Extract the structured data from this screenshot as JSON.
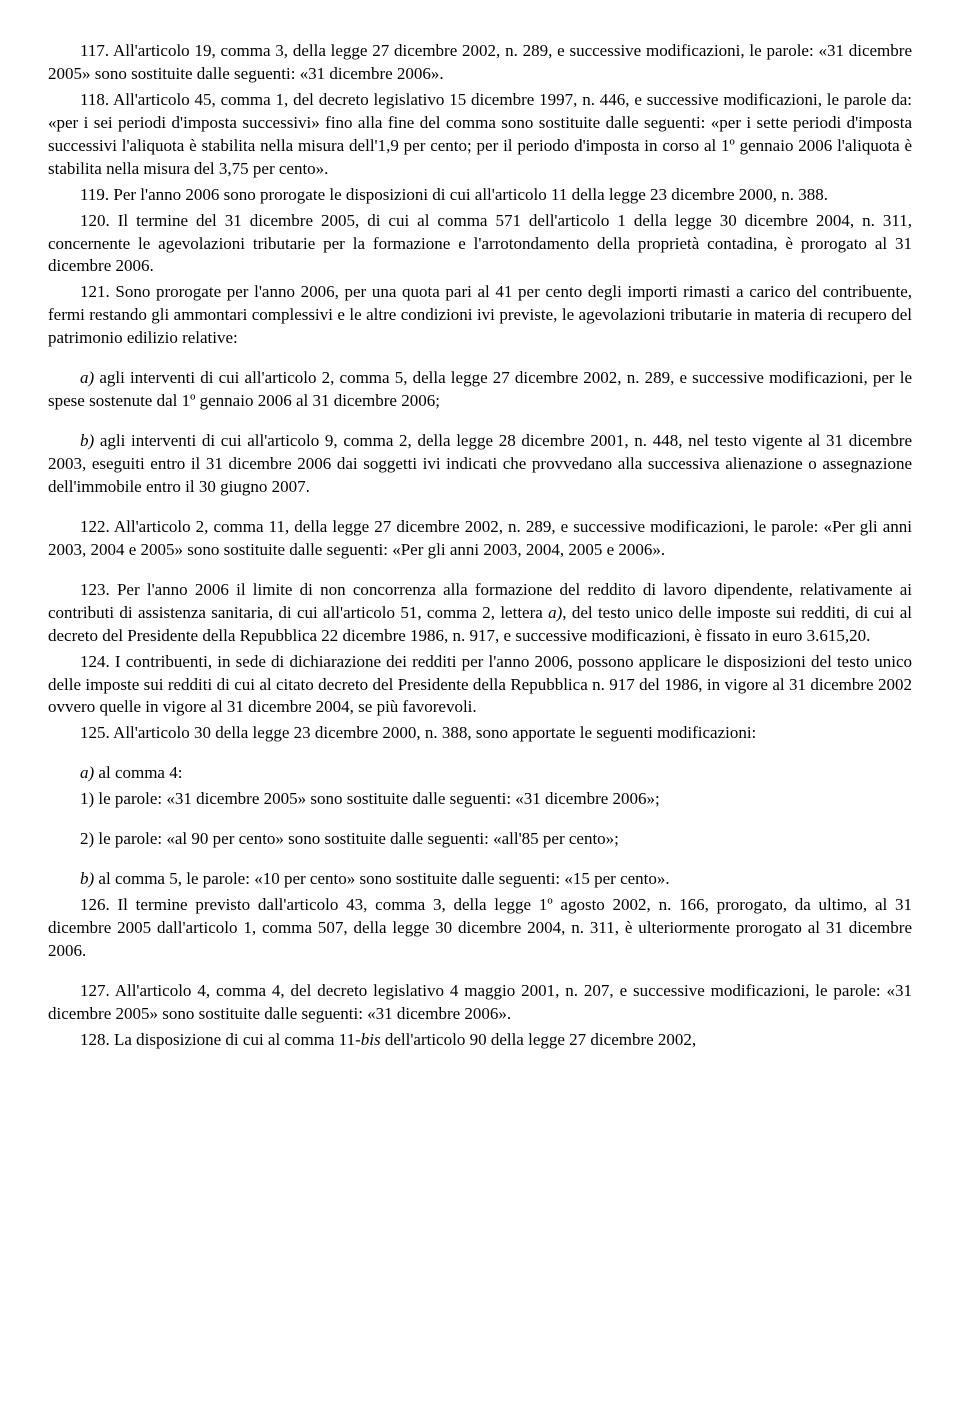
{
  "p117": "117. All'articolo 19, comma 3, della legge 27 dicembre 2002, n. 289, e successive modificazioni, le parole: «31 dicembre 2005» sono sostituite dalle seguenti: «31 dicembre 2006».",
  "p118": "118. All'articolo 45, comma 1, del decreto legislativo 15 dicembre 1997, n. 446, e successive modificazioni, le parole da: «per i sei periodi d'imposta successivi» fino alla fine del comma sono sostituite dalle seguenti: «per i sette periodi d'imposta successivi l'aliquota è stabilita nella misura dell'1,9 per cento; per il periodo d'imposta in corso al 1º gennaio 2006 l'aliquota è stabilita nella misura del 3,75 per cento».",
  "p119": "119. Per l'anno 2006 sono prorogate le disposizioni di cui all'articolo 11 della legge 23 dicembre 2000, n. 388.",
  "p120": "120. Il termine del 31 dicembre 2005, di cui al comma 571 dell'articolo 1 della legge 30 dicembre 2004, n. 311, concernente le agevolazioni tributarie per la formazione e l'arrotondamento della proprietà contadina, è prorogato al 31 dicembre 2006.",
  "p121": "121. Sono prorogate per l'anno 2006, per una quota pari al 41 per cento degli importi rimasti a carico del contribuente, fermi restando gli ammontari complessivi e le altre condizioni ivi previste, le agevolazioni tributarie in materia di recupero del patrimonio edilizio relative:",
  "p121a_label": "a)",
  "p121a": " agli interventi di cui all'articolo 2, comma 5, della legge 27 dicembre 2002, n. 289, e successive modificazioni, per le spese sostenute dal 1º gennaio 2006 al 31 dicembre 2006;",
  "p121b_label": "b)",
  "p121b": " agli interventi di cui all'articolo 9, comma 2, della legge 28 dicembre 2001, n. 448, nel testo vigente al 31 dicembre 2003, eseguiti entro il 31 dicembre 2006 dai soggetti ivi indicati che provvedano alla successiva alienazione o assegnazione dell'immobile entro il 30 giugno 2007.",
  "p122": "122. All'articolo 2, comma 11, della legge 27 dicembre 2002, n. 289, e successive modificazioni, le parole: «Per gli anni 2003, 2004 e 2005» sono sostituite dalle seguenti: «Per gli anni 2003, 2004, 2005 e 2006».",
  "p123_part1": "123. Per l'anno 2006 il limite di non concorrenza alla formazione del reddito di lavoro dipendente, relativamente ai contributi di assistenza sanitaria, di cui all'articolo 51, comma 2, lettera ",
  "p123_italic": "a)",
  "p123_part2": ", del testo unico delle imposte sui redditi, di cui al decreto del Presidente della Repubblica 22 dicembre 1986, n. 917, e successive modificazioni, è fissato in euro 3.615,20.",
  "p124": "124. I contribuenti, in sede di dichiarazione dei redditi per l'anno 2006, possono applicare le disposizioni del testo unico delle imposte sui redditi di cui al citato decreto del Presidente della Repubblica n. 917 del 1986, in vigore al 31 dicembre 2002 ovvero quelle in vigore al 31 dicembre 2004, se più favorevoli.",
  "p125": "125. All'articolo 30 della legge 23 dicembre 2000, n. 388, sono apportate le seguenti modificazioni:",
  "p125a_label": "a)",
  "p125a": " al comma 4:",
  "p125a1": "1) le parole: «31 dicembre 2005» sono sostituite dalle seguenti: «31 dicembre 2006»;",
  "p125a2": "2) le parole: «al 90 per cento» sono sostituite dalle seguenti: «all'85 per cento»;",
  "p125b_label": "b)",
  "p125b": " al comma 5, le parole: «10 per cento» sono sostituite dalle seguenti: «15 per cento».",
  "p126": "126. Il termine previsto dall'articolo 43, comma 3, della legge 1º agosto 2002, n. 166, prorogato, da ultimo, al 31 dicembre 2005 dall'articolo 1, comma 507, della legge 30 dicembre 2004, n. 311, è ulteriormente prorogato al 31 dicembre 2006.",
  "p127": "127. All'articolo 4, comma 4, del decreto legislativo 4 maggio 2001, n. 207, e successive modificazioni, le parole: «31 dicembre 2005» sono sostituite dalle seguenti: «31 dicembre 2006».",
  "p128_part1": "128. La disposizione di cui al comma 11-",
  "p128_italic": "bis",
  "p128_part2": " dell'articolo 90 della legge 27 dicembre 2002,"
}
